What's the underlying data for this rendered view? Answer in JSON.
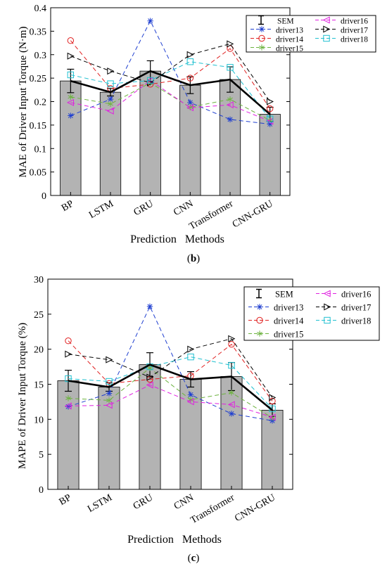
{
  "chart_data": [
    {
      "type": "bar",
      "panel_label": "b",
      "ylabel": "MAE of Driver Input Torque (N·m)",
      "xlabel": "Prediction   Methods",
      "categories": [
        "BP",
        "LSTM",
        "GRU",
        "CNN",
        "Transformer",
        "CNN-GRU"
      ],
      "values": [
        0.244,
        0.22,
        0.265,
        0.235,
        0.247,
        0.173
      ],
      "sem": [
        0.025,
        0.008,
        0.022,
        0.018,
        0.027,
        0.015
      ],
      "ylim": [
        0,
        0.4
      ],
      "yticks": [
        0,
        0.05,
        0.1,
        0.15,
        0.2,
        0.25,
        0.3,
        0.35,
        0.4
      ],
      "ytick_labels": [
        "0",
        "0.05",
        "0.1",
        "0.15",
        "0.2",
        "0.25",
        "0.3",
        "0.35",
        "0.4"
      ],
      "legend_position": "top-right",
      "series": [
        {
          "name": "driver13",
          "color": "#1f3fd0",
          "marker": "star",
          "values": [
            0.17,
            0.205,
            0.372,
            0.198,
            0.162,
            0.152
          ]
        },
        {
          "name": "driver14",
          "color": "#e02020",
          "marker": "circle",
          "values": [
            0.33,
            0.228,
            0.237,
            0.25,
            0.313,
            0.185
          ]
        },
        {
          "name": "driver15",
          "color": "#6db33f",
          "marker": "asterisk",
          "values": [
            0.21,
            0.195,
            0.24,
            0.188,
            0.205,
            0.16
          ]
        },
        {
          "name": "driver16",
          "color": "#e020e0",
          "marker": "triangle-left",
          "values": [
            0.198,
            0.18,
            0.245,
            0.187,
            0.193,
            0.158
          ]
        },
        {
          "name": "driver17",
          "color": "#000000",
          "marker": "triangle-right",
          "values": [
            0.297,
            0.265,
            0.24,
            0.3,
            0.323,
            0.2
          ]
        },
        {
          "name": "driver18",
          "color": "#20c0d0",
          "marker": "square",
          "values": [
            0.257,
            0.238,
            0.245,
            0.285,
            0.273,
            0.163
          ]
        }
      ]
    },
    {
      "type": "bar",
      "panel_label": "c",
      "ylabel": "MAPE of Driver Input Torque (%)",
      "xlabel": "Prediction   Methods",
      "categories": [
        "BP",
        "LSTM",
        "GRU",
        "CNN",
        "Transformer",
        "CNN-GRU"
      ],
      "values": [
        15.5,
        14.6,
        17.8,
        15.7,
        16.1,
        11.3
      ],
      "sem": [
        1.5,
        0.6,
        1.7,
        1.1,
        2.0,
        0.9
      ],
      "ylim": [
        0,
        30
      ],
      "yticks": [
        0,
        5,
        10,
        15,
        20,
        25,
        30
      ],
      "ytick_labels": [
        "0",
        "5",
        "10",
        "15",
        "20",
        "25",
        "30"
      ],
      "legend_position": "top-right",
      "series": [
        {
          "name": "driver13",
          "color": "#1f3fd0",
          "marker": "star",
          "values": [
            11.8,
            13.7,
            26.1,
            13.5,
            10.8,
            9.8
          ]
        },
        {
          "name": "driver14",
          "color": "#e02020",
          "marker": "circle",
          "values": [
            21.2,
            15.1,
            15.7,
            16.2,
            20.7,
            12.6
          ]
        },
        {
          "name": "driver15",
          "color": "#6db33f",
          "marker": "asterisk",
          "values": [
            13.0,
            12.7,
            17.3,
            12.8,
            13.8,
            10.2
          ]
        },
        {
          "name": "driver16",
          "color": "#e020e0",
          "marker": "triangle-left",
          "values": [
            11.9,
            12.0,
            14.9,
            12.5,
            12.1,
            10.3
          ]
        },
        {
          "name": "driver17",
          "color": "#000000",
          "marker": "triangle-right",
          "values": [
            19.3,
            18.5,
            16.0,
            20.0,
            21.5,
            13.1
          ]
        },
        {
          "name": "driver18",
          "color": "#20c0d0",
          "marker": "square",
          "values": [
            15.8,
            15.4,
            17.5,
            18.9,
            17.7,
            11.5
          ]
        }
      ]
    }
  ],
  "legend": {
    "sem_label": "SEM",
    "bar_color": "#b3b3b3",
    "mean_line_color": "#000000"
  }
}
